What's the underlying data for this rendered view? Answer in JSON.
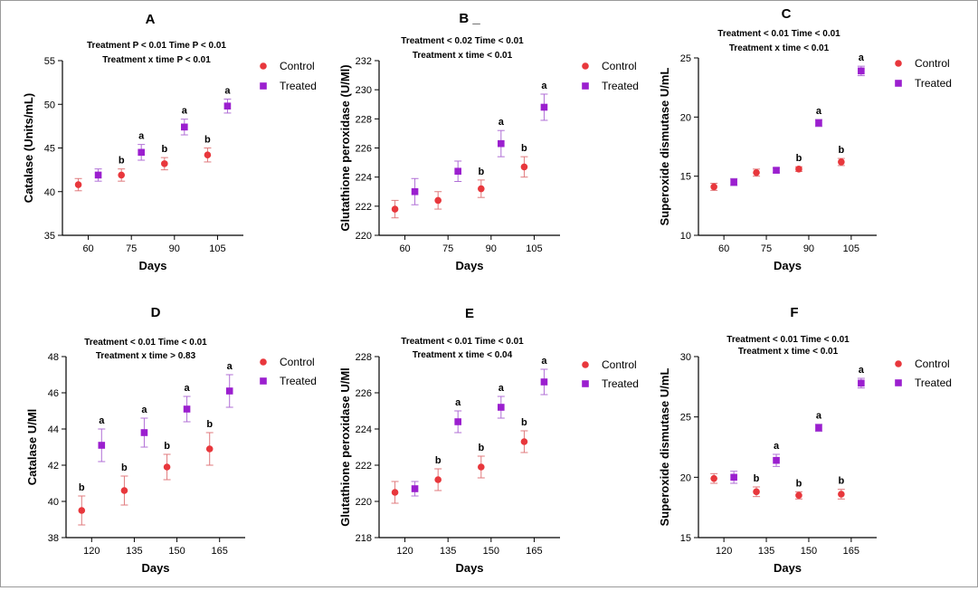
{
  "colors": {
    "control": "#e8373c",
    "treated": "#9b1fcf",
    "control_err": "#e07a7d",
    "treated_err": "#b06fd6",
    "axis": "#000000"
  },
  "chart_data": [
    {
      "type": "scatter",
      "title": "A",
      "stats": [
        "Treatment P < 0.01        Time P < 0.01",
        "Treatment x time P < 0.01"
      ],
      "xlabel": "Days",
      "ylabel": "Catalase  (Units/mL)",
      "categories": [
        "60",
        "75",
        "90",
        "105"
      ],
      "ylim": [
        35,
        55
      ],
      "yticks": [
        35,
        40,
        45,
        50,
        55
      ],
      "series": [
        {
          "name": "Control",
          "values": [
            40.8,
            41.9,
            43.2,
            44.2
          ],
          "err": [
            0.7,
            0.7,
            0.7,
            0.8
          ],
          "labels": [
            "",
            "b",
            "b",
            "b"
          ]
        },
        {
          "name": "Treated",
          "values": [
            41.9,
            44.5,
            47.4,
            49.8
          ],
          "err": [
            0.7,
            0.9,
            0.9,
            0.8
          ],
          "labels": [
            "",
            "a",
            "a",
            "a"
          ]
        }
      ]
    },
    {
      "type": "scatter",
      "title": "B _",
      "stats": [
        "Treatment < 0.02        Time < 0.01",
        "Treatment x time < 0.01"
      ],
      "xlabel": "Days",
      "ylabel": "Glutathione peroxidase (U/Ml)",
      "categories": [
        "60",
        "75",
        "90",
        "105"
      ],
      "ylim": [
        220,
        232
      ],
      "yticks": [
        220,
        222,
        224,
        226,
        228,
        230,
        232
      ],
      "series": [
        {
          "name": "Control",
          "values": [
            221.8,
            222.4,
            223.2,
            224.7
          ],
          "err": [
            0.6,
            0.6,
            0.6,
            0.7
          ],
          "labels": [
            "",
            "",
            "b",
            "b"
          ]
        },
        {
          "name": "Treated",
          "values": [
            223.0,
            224.4,
            226.3,
            228.8
          ],
          "err": [
            0.9,
            0.7,
            0.9,
            0.9
          ],
          "labels": [
            "",
            "",
            "a",
            "a"
          ]
        }
      ]
    },
    {
      "type": "scatter",
      "title": "C",
      "stats": [
        "Treatment < 0.01        Time < 0.01",
        "Treatment x time < 0.01"
      ],
      "xlabel": "Days",
      "ylabel": "Superoxide dismutase U/mL",
      "categories": [
        "60",
        "75",
        "90",
        "105"
      ],
      "ylim": [
        10,
        25
      ],
      "yticks": [
        10,
        15,
        20,
        25
      ],
      "series": [
        {
          "name": "Control",
          "values": [
            14.1,
            15.3,
            15.6,
            16.2
          ],
          "err": [
            0.3,
            0.3,
            0.2,
            0.3
          ],
          "labels": [
            "",
            "",
            "b",
            "b"
          ]
        },
        {
          "name": "Treated",
          "values": [
            14.5,
            15.5,
            19.5,
            23.9
          ],
          "err": [
            0.3,
            0.2,
            0.3,
            0.4
          ],
          "labels": [
            "",
            "",
            "a",
            "a"
          ]
        }
      ]
    },
    {
      "type": "scatter",
      "title": "D",
      "stats": [
        "Treatment < 0.01        Time < 0.01",
        "Treatment x time > 0.83"
      ],
      "xlabel": "Days",
      "ylabel": "Catalase U/Ml",
      "categories": [
        "120",
        "135",
        "150",
        "165"
      ],
      "ylim": [
        38,
        48
      ],
      "yticks": [
        38,
        40,
        42,
        44,
        46,
        48
      ],
      "series": [
        {
          "name": "Control",
          "values": [
            39.5,
            40.6,
            41.9,
            42.9
          ],
          "err": [
            0.8,
            0.8,
            0.7,
            0.9
          ],
          "labels": [
            "b",
            "b",
            "b",
            "b"
          ]
        },
        {
          "name": "Treated",
          "values": [
            43.1,
            43.8,
            45.1,
            46.1
          ],
          "err": [
            0.9,
            0.8,
            0.7,
            0.9
          ],
          "labels": [
            "a",
            "a",
            "a",
            "a"
          ]
        }
      ]
    },
    {
      "type": "scatter",
      "title": "E",
      "stats": [
        "Treatment < 0.01        Time < 0.01",
        "Treatment x time < 0.04"
      ],
      "xlabel": "Days",
      "ylabel": "Glutathione peroxidase U/Ml",
      "categories": [
        "120",
        "135",
        "150",
        "165"
      ],
      "ylim": [
        218,
        228
      ],
      "yticks": [
        218,
        220,
        222,
        224,
        226,
        228
      ],
      "series": [
        {
          "name": "Control",
          "values": [
            220.5,
            221.2,
            221.9,
            223.3
          ],
          "err": [
            0.6,
            0.6,
            0.6,
            0.6
          ],
          "labels": [
            "",
            "b",
            "b",
            "b"
          ]
        },
        {
          "name": "Treated",
          "values": [
            220.7,
            224.4,
            225.2,
            226.6
          ],
          "err": [
            0.4,
            0.6,
            0.6,
            0.7
          ],
          "labels": [
            "",
            "a",
            "a",
            "a"
          ]
        }
      ]
    },
    {
      "type": "scatter",
      "title": "F",
      "stats": [
        "Treatment < 0.01        Time < 0.01",
        "Treatment x time < 0.01"
      ],
      "xlabel": "Days",
      "ylabel": "Superoxide dismutase U/mL",
      "categories": [
        "120",
        "135",
        "150",
        "165"
      ],
      "ylim": [
        15,
        30
      ],
      "yticks": [
        15,
        20,
        25,
        30
      ],
      "series": [
        {
          "name": "Control",
          "values": [
            19.9,
            18.8,
            18.5,
            18.6
          ],
          "err": [
            0.4,
            0.4,
            0.3,
            0.4
          ],
          "labels": [
            "",
            "b",
            "b",
            "b"
          ]
        },
        {
          "name": "Treated",
          "values": [
            20.0,
            21.4,
            24.1,
            27.8
          ],
          "err": [
            0.5,
            0.5,
            0.3,
            0.4
          ],
          "labels": [
            "",
            "a",
            "a",
            "a"
          ]
        }
      ]
    }
  ]
}
